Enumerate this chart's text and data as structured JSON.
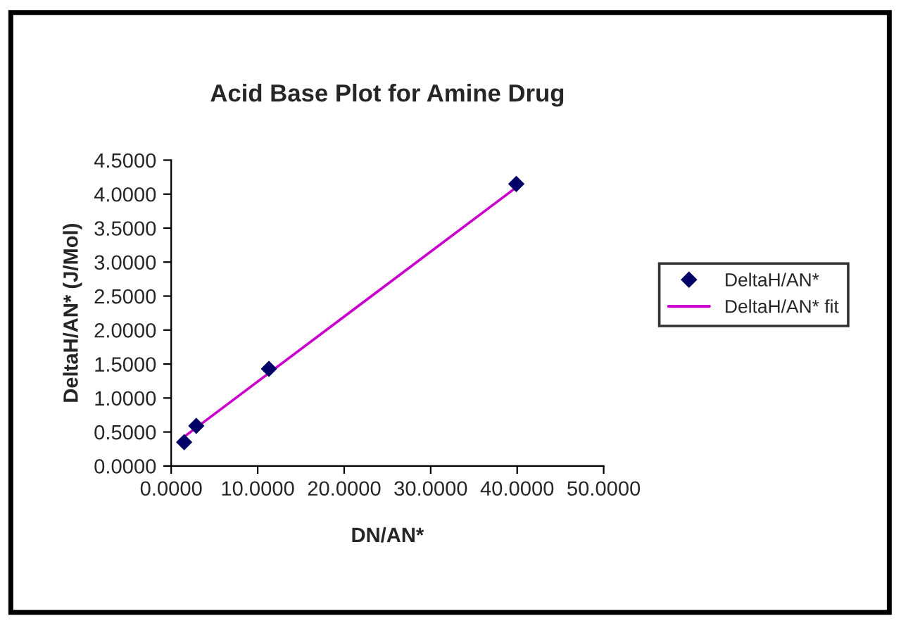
{
  "chart_data": {
    "type": "scatter",
    "title": "Acid Base Plot for Amine Drug",
    "xlabel": "DN/AN*",
    "ylabel": "DeltaH/AN* (J/Mol)",
    "series": [
      {
        "name": "DeltaH/AN*",
        "color": "#000066",
        "marker": "diamond",
        "x": [
          1.5,
          2.9,
          11.3,
          39.9
        ],
        "values": [
          0.35,
          0.59,
          1.43,
          4.15
        ]
      },
      {
        "name": "DeltaH/AN* fit",
        "type": "line",
        "color": "#cc00cc",
        "marker": "none",
        "line_style": "solid",
        "x": [
          1.5,
          39.9
        ],
        "values": [
          0.43,
          4.1
        ]
      }
    ],
    "xlim": [
      0,
      50
    ],
    "xticks": [
      {
        "value": 0,
        "label": "0.0000"
      },
      {
        "value": 10,
        "label": "10.0000"
      },
      {
        "value": 20,
        "label": "20.0000"
      },
      {
        "value": 30,
        "label": "30.0000"
      },
      {
        "value": 40,
        "label": "40.0000"
      },
      {
        "value": 50,
        "label": "50.0000"
      }
    ],
    "ylim": [
      0,
      4.5
    ],
    "yticks": [
      {
        "value": 0,
        "label": "0.0000"
      },
      {
        "value": 0.5,
        "label": "0.5000"
      },
      {
        "value": 1,
        "label": "1.0000"
      },
      {
        "value": 1.5,
        "label": "1.5000"
      },
      {
        "value": 2,
        "label": "2.0000"
      },
      {
        "value": 2.5,
        "label": "2.5000"
      },
      {
        "value": 3,
        "label": "3.0000"
      },
      {
        "value": 3.5,
        "label": "3.5000"
      },
      {
        "value": 4,
        "label": "4.0000"
      },
      {
        "value": 4.5,
        "label": "4.5000"
      }
    ],
    "grid": false,
    "legend": "right"
  }
}
